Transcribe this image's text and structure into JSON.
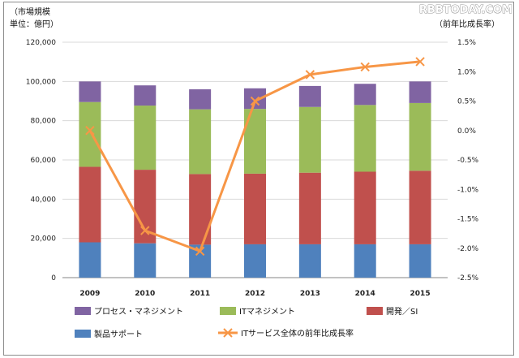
{
  "watermark": "RBBTODAY.COM",
  "left_axis_title_line1": "（市場規模",
  "left_axis_title_line2": "単位：億円）",
  "right_axis_title": "（前年比成長率）",
  "colors": {
    "product_support": "#4f81bd",
    "development_si": "#c0504d",
    "it_management": "#9bbb59",
    "process_management": "#8064a2",
    "growth_line": "#f79646",
    "grid": "#d9d9d9"
  },
  "chart_data": {
    "type": "bar",
    "stacked": true,
    "categories": [
      "2009",
      "2010",
      "2011",
      "2012",
      "2013",
      "2014",
      "2015"
    ],
    "series": [
      {
        "name": "製品サポート",
        "values": [
          18000,
          17500,
          16800,
          17000,
          17000,
          17000,
          17000
        ]
      },
      {
        "name": "開発／SI",
        "values": [
          38500,
          37500,
          36000,
          36000,
          36500,
          37000,
          37500
        ]
      },
      {
        "name": "ITマネジメント",
        "values": [
          33000,
          32700,
          33000,
          33000,
          33500,
          34000,
          34500
        ]
      },
      {
        "name": "プロセス・マネジメント",
        "values": [
          10500,
          10300,
          10200,
          10500,
          10700,
          10800,
          11000
        ]
      }
    ],
    "line_series": {
      "name": "ITサービス全体の前年比成長率",
      "axis": "right",
      "values": [
        0.0,
        -1.7,
        -2.05,
        0.5,
        0.95,
        1.08,
        1.17
      ]
    },
    "ylim": [
      0,
      120000
    ],
    "yticks": [
      "0",
      "20,000",
      "40,000",
      "60,000",
      "80,000",
      "100,000",
      "120,000"
    ],
    "y2lim": [
      -2.5,
      1.5
    ],
    "y2ticks": [
      "1.5%",
      "1.0%",
      "0.5%",
      "0.0%",
      "-0.5%",
      "-1.0%",
      "-1.5%",
      "-2.0%",
      "-2.5%"
    ],
    "grid": true,
    "legend_position": "bottom"
  }
}
